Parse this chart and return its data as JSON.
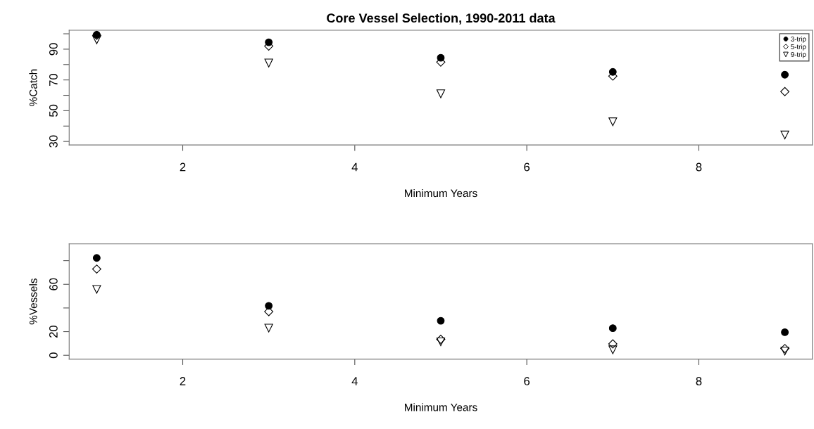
{
  "chart_data": [
    {
      "type": "scatter",
      "title": "Core Vessel Selection, 1990-2011 data",
      "xlabel": "Minimum Years",
      "ylabel": "%Catch",
      "x": [
        1,
        3,
        5,
        7,
        9
      ],
      "xlim": [
        0.68,
        9.32
      ],
      "xticks": [
        2,
        4,
        6,
        8
      ],
      "ylim": [
        27.7,
        102.3
      ],
      "yticks": [
        30,
        {
          "value": 40,
          "label": null
        },
        50,
        {
          "value": 60,
          "label": null
        },
        70,
        {
          "value": 80,
          "label": null
        },
        90,
        {
          "value": 100,
          "label": null
        }
      ],
      "grid": false,
      "legend": "top right",
      "series": [
        {
          "name": "3-trip",
          "color": "#000000",
          "marker": "circle",
          "values": [
            99.4,
            94.5,
            84.4,
            75.2,
            73.4
          ]
        },
        {
          "name": "5-trip",
          "color": "#000000",
          "marker": "diamond",
          "values": [
            99,
            92,
            81.6,
            72.5,
            62.4
          ]
        },
        {
          "name": "9-trip",
          "color": "#000000",
          "marker": "triangle",
          "values": [
            96,
            81,
            61,
            42.8,
            34.2
          ]
        }
      ]
    },
    {
      "type": "scatter",
      "xlabel": "Minimum Years",
      "ylabel": "%Vessels",
      "x": [
        1,
        3,
        5,
        7,
        9
      ],
      "xlim": [
        0.68,
        9.32
      ],
      "xticks": [
        2,
        4,
        6,
        8
      ],
      "ylim": [
        -3.2,
        94.2
      ],
      "yticks": [
        0,
        20,
        {
          "value": 40,
          "label": null
        },
        60,
        {
          "value": 80,
          "label": null
        }
      ],
      "grid": false,
      "legend": false,
      "series": [
        {
          "color": "#000000",
          "marker": "circle",
          "values": [
            82.3,
            41.8,
            29.2,
            22.9,
            19.5
          ]
        },
        {
          "color": "#000000",
          "marker": "diamond",
          "values": [
            72.9,
            36.9,
            13.5,
            9.6,
            5.7
          ]
        },
        {
          "color": "#000000",
          "marker": "triangle",
          "values": [
            55.7,
            23.0,
            11.4,
            4.6,
            3.5
          ]
        }
      ]
    }
  ]
}
